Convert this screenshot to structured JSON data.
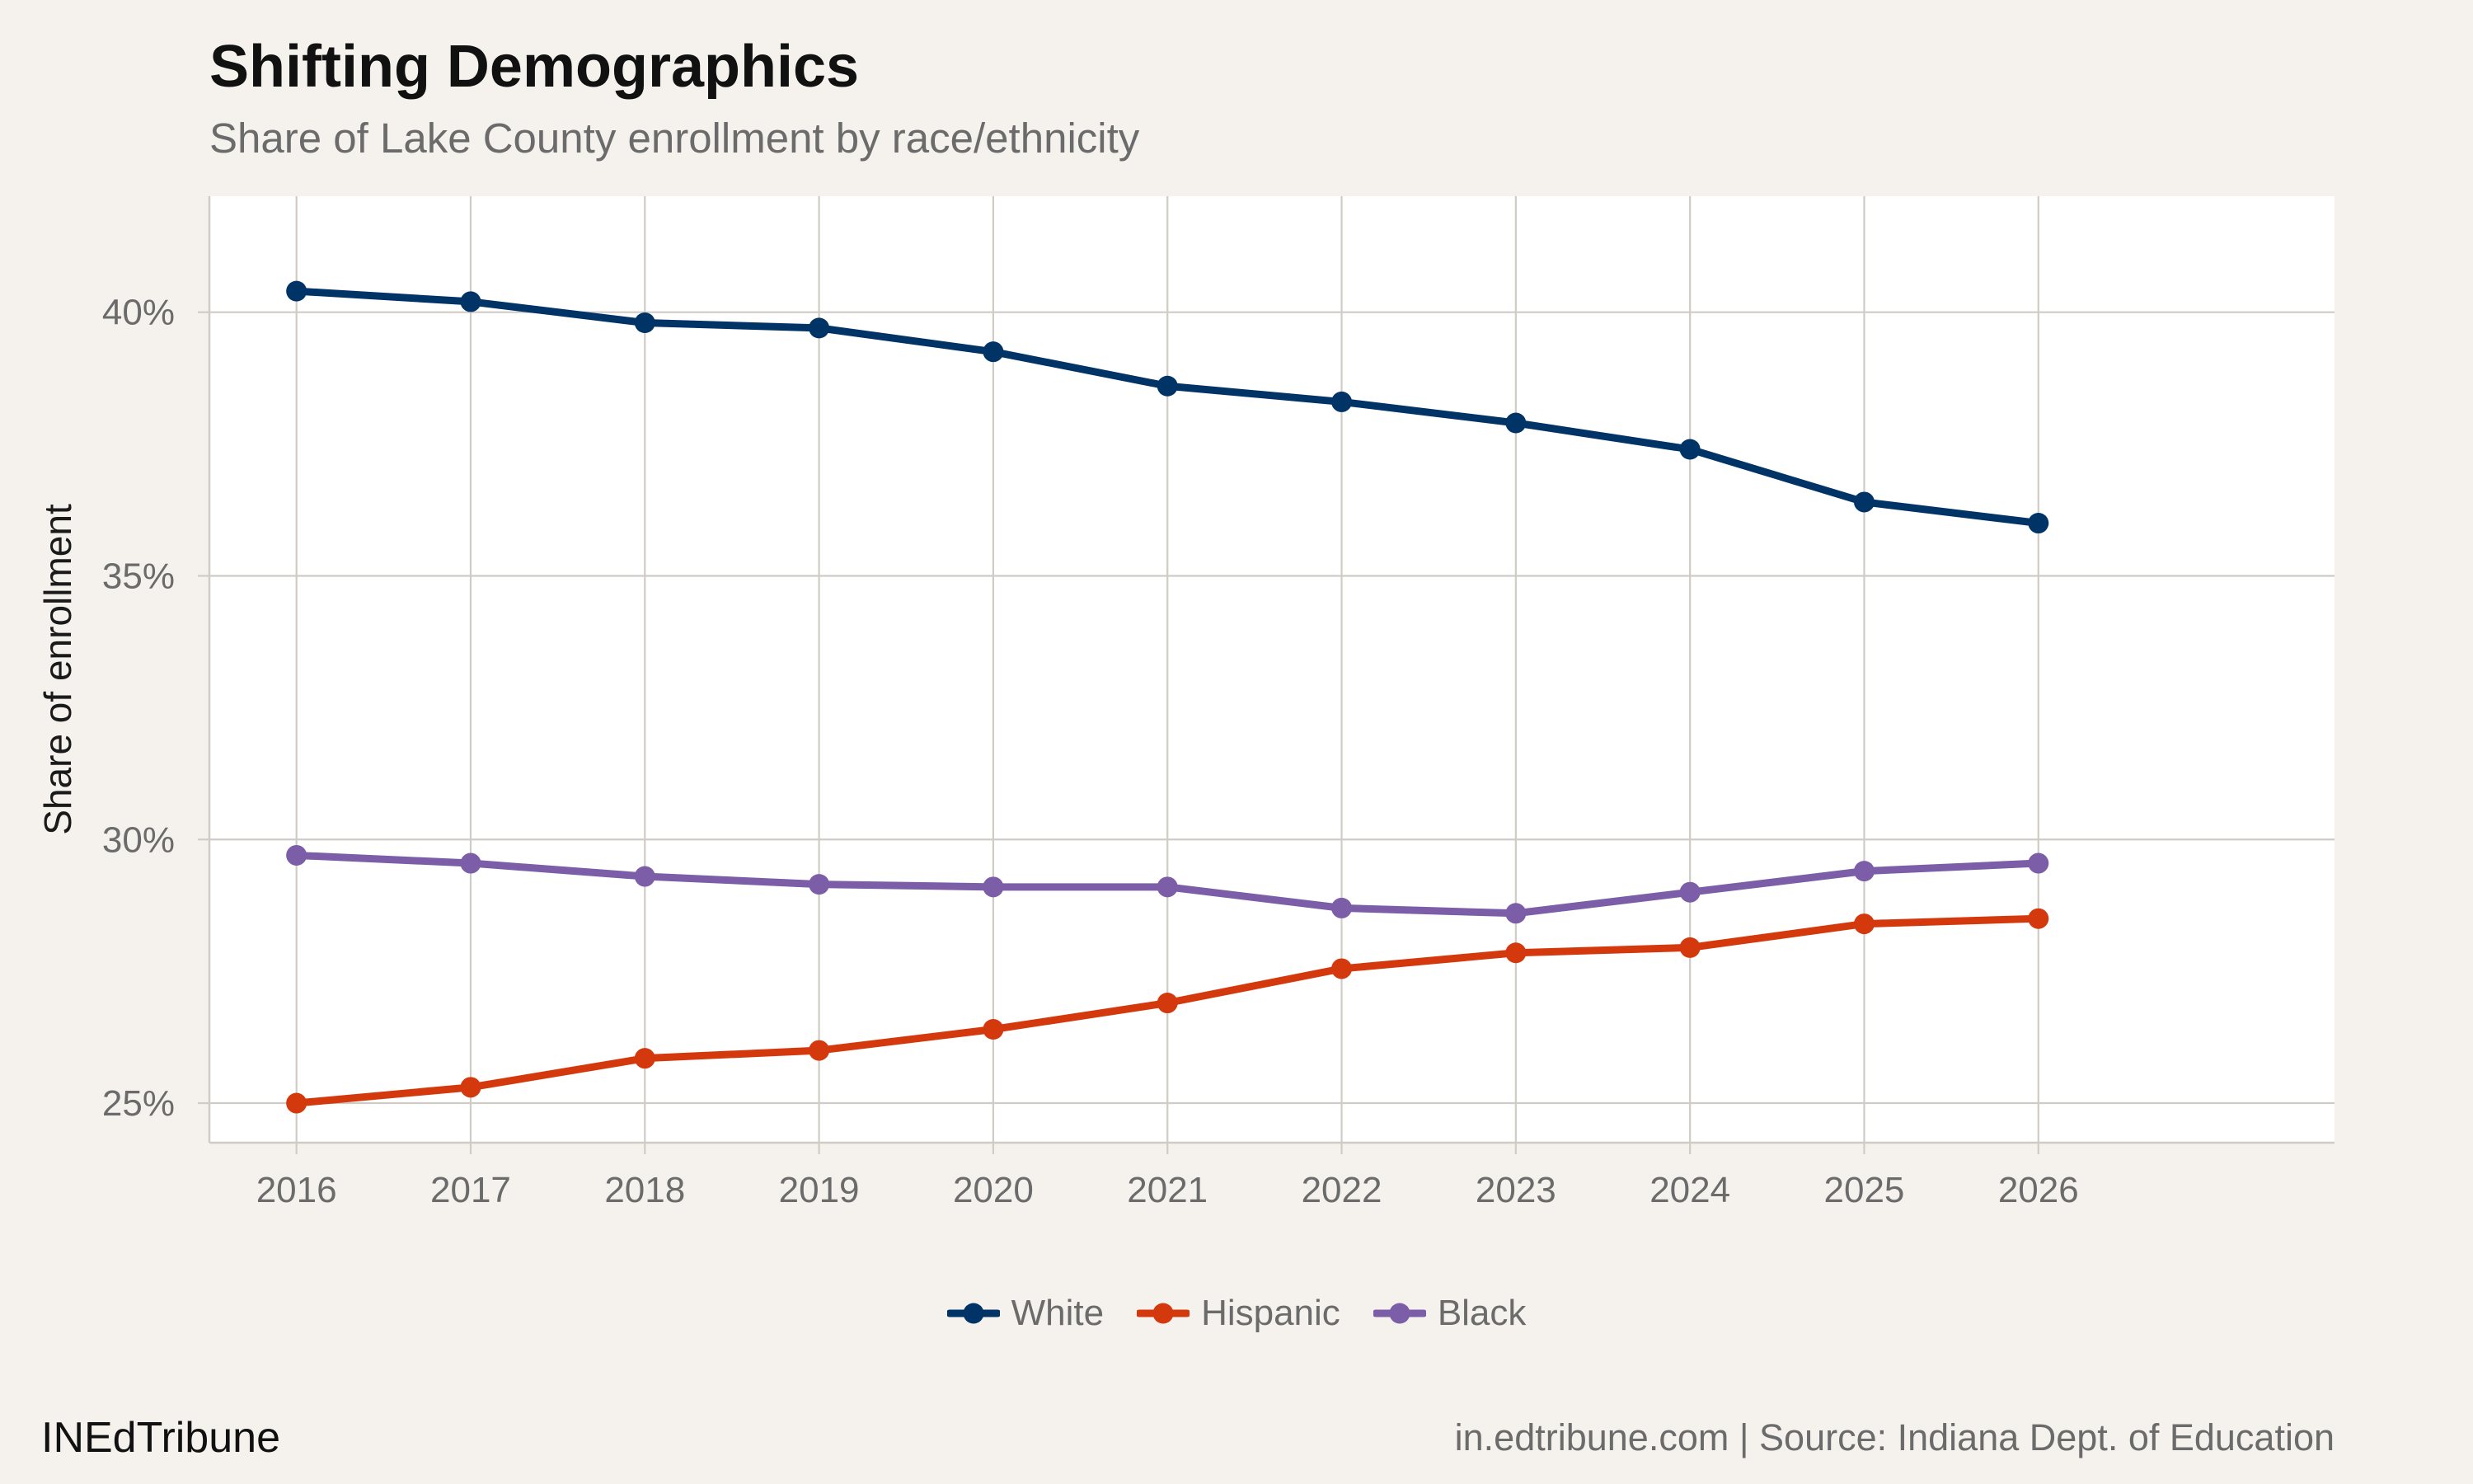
{
  "header": {
    "title": "Shifting Demographics",
    "subtitle": "Share of Lake County enrollment by race/ethnicity"
  },
  "footer": {
    "brand": "INEdTribune",
    "source": "in.edtribune.com | Source: Indiana Dept. of Education"
  },
  "colors": {
    "background": "#f5f2ed",
    "panel": "#ffffff",
    "grid": "#cfccc6",
    "white_series": "#003366",
    "hispanic_series": "#d4380d",
    "black_series": "#7b5ea7"
  },
  "chart_data": {
    "type": "line",
    "title": "Shifting Demographics",
    "subtitle": "Share of Lake County enrollment by race/ethnicity",
    "xlabel": "",
    "ylabel": "Share of enrollment",
    "x": [
      2016,
      2017,
      2018,
      2019,
      2020,
      2021,
      2022,
      2023,
      2024,
      2025,
      2026
    ],
    "x_tick_labels": [
      "2016",
      "2017",
      "2018",
      "2019",
      "2020",
      "2021",
      "2022",
      "2023",
      "2024",
      "2025",
      "2026"
    ],
    "xlim": [
      2015.5,
      2027.7
    ],
    "ylim": [
      24.25,
      42.2
    ],
    "y_ticks": [
      25,
      30,
      35,
      40
    ],
    "y_tick_labels": [
      "25%",
      "30%",
      "35%",
      "40%"
    ],
    "grid": true,
    "legend_position": "bottom",
    "series": [
      {
        "name": "White",
        "color": "#003366",
        "values": [
          40.4,
          40.2,
          39.8,
          39.7,
          39.25,
          38.6,
          38.3,
          37.9,
          37.4,
          36.4,
          36.0
        ]
      },
      {
        "name": "Hispanic",
        "color": "#d4380d",
        "values": [
          25.0,
          25.3,
          25.85,
          26.0,
          26.4,
          26.9,
          27.55,
          27.85,
          27.95,
          28.4,
          28.5
        ]
      },
      {
        "name": "Black",
        "color": "#7b5ea7",
        "values": [
          29.7,
          29.55,
          29.3,
          29.15,
          29.1,
          29.1,
          28.7,
          28.6,
          29.0,
          29.4,
          29.55
        ]
      }
    ]
  }
}
